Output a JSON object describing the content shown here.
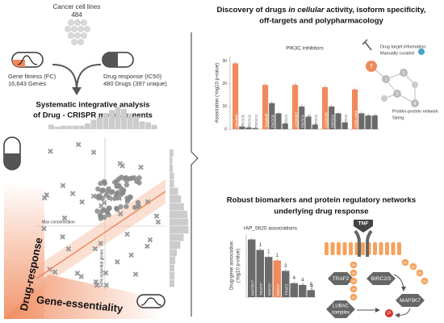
{
  "cell_lines": {
    "label": "Cancer cell lines",
    "count": "484"
  },
  "gene_fitness": {
    "label": "Gene fitness (FC)",
    "count": "16,643 Genes"
  },
  "drug_response": {
    "label": "Drug response (IC50)",
    "count": "480 Drugs (397 unique)"
  },
  "analysis_title": [
    "Systematic integrative analysis",
    "of Drug - CRISPR measurements"
  ],
  "scatter": {
    "x_label": "Gene-essentiality",
    "y_label": "Drug-response",
    "annotations": [
      "Max concentration",
      "50% essential genes"
    ]
  },
  "discovery": {
    "title_line1": [
      "Discovery of drugs ",
      "in cellular",
      " activity, isoform specificity,"
    ],
    "title_line2": "off-targets and polypharmacology",
    "chart": {
      "type": "bar",
      "title": "PIK3C inhibitors",
      "y_label": "Association (-log10 p-value)",
      "ylim": [
        0,
        32
      ],
      "yticks": [
        0,
        10,
        20,
        30
      ],
      "highlight_color": "#f08a5d",
      "color": "#6b6b6b",
      "groups": [
        {
          "labels": [
            "Alpelisib",
            "PIK3CB",
            "PIK3CD",
            "PIK3CG"
          ],
          "values": [
            29,
            1.2,
            0.8,
            0.5
          ]
        },
        {
          "labels": [
            "Taselisib",
            "PIK3CB",
            "PIK3CD",
            "PIK3CG"
          ],
          "values": [
            19.5,
            11.5,
            7,
            2.5
          ]
        },
        {
          "labels": [
            "AZD6482",
            "PIK3CA",
            "PIK3CD",
            "PIK3CG"
          ],
          "values": [
            19.5,
            10,
            5.5,
            2
          ]
        },
        {
          "labels": [
            "AZD8186",
            "PIK3CA",
            "PIK3CD",
            "PIK3CG"
          ],
          "values": [
            18.5,
            10,
            7,
            3
          ]
        },
        {
          "labels": [
            "PI3K-4469",
            "PIK3CA",
            "PIK3CB",
            "PIK3CG"
          ],
          "values": [
            17.5,
            7,
            6,
            6
          ]
        }
      ]
    },
    "network": {
      "target_info": [
        "Drug target information",
        "Manually curated"
      ],
      "ppi": [
        "Protein-protein network",
        "String"
      ],
      "target_node": "T",
      "node_labels": [
        "1",
        "2",
        "3",
        "4"
      ]
    }
  },
  "biomarkers": {
    "title": [
      "Robust biomarkers and protein regulatory networks",
      "underlying drug response"
    ],
    "chart": {
      "type": "bar",
      "title": "IAP_5620 associations",
      "y_label": [
        "Drug-gene association",
        "(-log10 p-value)"
      ],
      "ylim": [
        0,
        18
      ],
      "highlight": 3,
      "highlight_color": "#f08a5d",
      "color": "#6b6b6b",
      "categories": [
        "MAP3K7*",
        "TRAF2*",
        "RNF31*",
        "BIRC2*",
        "TRAF3",
        "TBK1*",
        "IKBKB*",
        "MAP3K*"
      ],
      "values": [
        16.5,
        13.5,
        11.5,
        10.5,
        7.5,
        4,
        3.5,
        2
      ],
      "distances": [
        null,
        1,
        1,
        1,
        3,
        4,
        4,
        5
      ]
    },
    "pathway": {
      "ligand": "TNF",
      "nodes": [
        "TRAF2",
        "BIRC2/3",
        "MAP3K7",
        "LUBAC",
        "complex"
      ],
      "ub": "Ub",
      "phospho": "P"
    }
  }
}
